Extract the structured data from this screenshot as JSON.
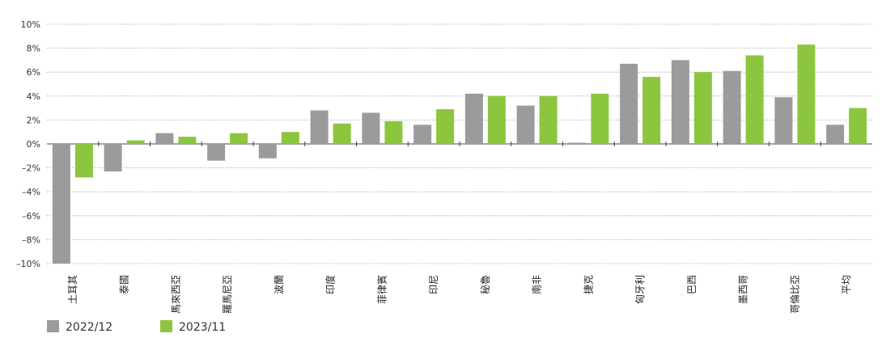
{
  "chart_data": {
    "type": "bar",
    "categories": [
      "土耳其",
      "泰國",
      "馬來西亞",
      "羅馬尼亞",
      "波蘭",
      "印度",
      "菲律賓",
      "印尼",
      "秘魯",
      "南非",
      "捷克",
      "匈牙利",
      "巴西",
      "墨西哥",
      "哥倫比亞",
      "平均"
    ],
    "series": [
      {
        "name": "2022/12",
        "color": "#9b9b9b",
        "values": [
          -10.0,
          -2.3,
          0.9,
          -1.4,
          -1.2,
          2.8,
          2.6,
          1.6,
          4.2,
          3.2,
          0.1,
          6.7,
          7.0,
          6.1,
          3.9,
          1.6
        ]
      },
      {
        "name": "2023/11",
        "color": "#8cc63f",
        "values": [
          -2.8,
          0.3,
          0.6,
          0.9,
          1.0,
          1.7,
          1.9,
          2.9,
          4.0,
          4.0,
          4.2,
          5.6,
          6.0,
          7.4,
          8.3,
          3.0
        ]
      }
    ],
    "yticks": [
      "10%",
      "8%",
      "6%",
      "4%",
      "2%",
      "0%",
      "–2%",
      "–4%",
      "–6%",
      "–8%",
      "–10%"
    ],
    "ylim": [
      -10,
      10
    ],
    "ystep": 2,
    "grid": true,
    "legend_position": "bottom-left",
    "title": "",
    "xlabel": "",
    "ylabel": ""
  }
}
